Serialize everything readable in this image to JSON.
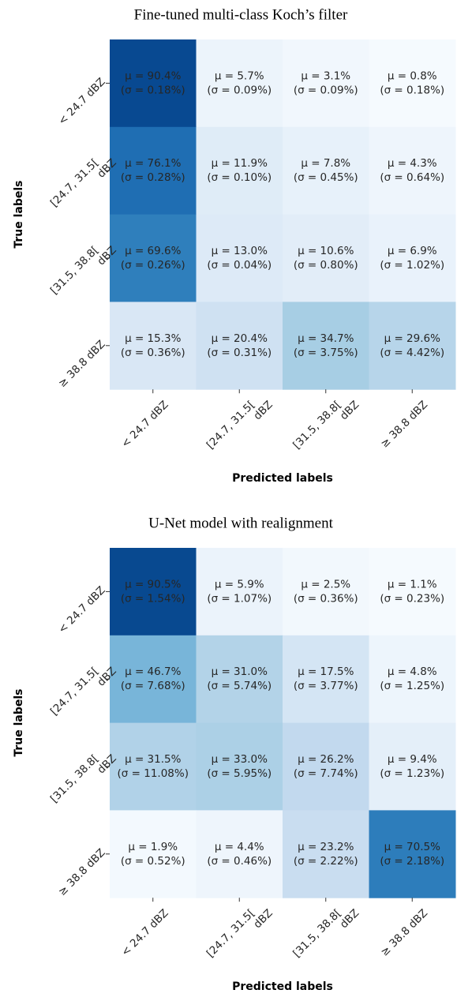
{
  "chart_data": [
    {
      "type": "heatmap",
      "title": "Fine-tuned multi-class Koch’s filter",
      "xlabel": "Predicted labels",
      "ylabel": "True labels",
      "x_categories": [
        [
          "< 24.7 dBZ"
        ],
        [
          "[24.7, 31.5[",
          "dBZ"
        ],
        [
          "[31.5, 38.8[",
          "dBZ"
        ],
        [
          "≥ 38.8 dBZ"
        ]
      ],
      "y_categories": [
        [
          "< 24.7 dBZ"
        ],
        [
          "[24.7, 31.5[",
          "dBZ"
        ],
        [
          "[31.5, 38.8[",
          "dBZ"
        ],
        [
          "≥ 38.8 dBZ"
        ]
      ],
      "values": [
        [
          90.4,
          5.7,
          3.1,
          0.8
        ],
        [
          76.1,
          11.9,
          7.8,
          4.3
        ],
        [
          69.6,
          13.0,
          10.6,
          6.9
        ],
        [
          15.3,
          20.4,
          34.7,
          29.6
        ]
      ],
      "value_labels": [
        [
          "μ = 90.4%",
          "μ = 5.7%",
          "μ = 3.1%",
          "μ = 0.8%"
        ],
        [
          "μ = 76.1%",
          "μ = 11.9%",
          "μ = 7.8%",
          "μ = 4.3%"
        ],
        [
          "μ = 69.6%",
          "μ = 13.0%",
          "μ = 10.6%",
          "μ = 6.9%"
        ],
        [
          "μ = 15.3%",
          "μ = 20.4%",
          "μ = 34.7%",
          "μ = 29.6%"
        ]
      ],
      "errors": [
        [
          0.18,
          0.09,
          0.09,
          0.18
        ],
        [
          0.28,
          0.1,
          0.45,
          0.64
        ],
        [
          0.26,
          0.04,
          0.8,
          1.02
        ],
        [
          0.36,
          0.31,
          3.75,
          4.42
        ]
      ],
      "error_labels": [
        [
          "(σ = 0.18%)",
          "(σ = 0.09%)",
          "(σ = 0.09%)",
          "(σ = 0.18%)"
        ],
        [
          "(σ = 0.28%)",
          "(σ = 0.10%)",
          "(σ = 0.45%)",
          "(σ = 0.64%)"
        ],
        [
          "(σ = 0.26%)",
          "(σ = 0.04%)",
          "(σ = 0.80%)",
          "(σ = 1.02%)"
        ],
        [
          "(σ = 0.36%)",
          "(σ = 0.31%)",
          "(σ = 3.75%)",
          "(σ = 4.42%)"
        ]
      ],
      "colormap": "Blues",
      "zlim": [
        0,
        100
      ]
    },
    {
      "type": "heatmap",
      "title": "U-Net model with realignment",
      "xlabel": "Predicted labels",
      "ylabel": "True labels",
      "x_categories": [
        [
          "< 24.7 dBZ"
        ],
        [
          "[24.7, 31.5[",
          "dBZ"
        ],
        [
          "[31.5, 38.8[",
          "dBZ"
        ],
        [
          "≥ 38.8 dBZ"
        ]
      ],
      "y_categories": [
        [
          "< 24.7 dBZ"
        ],
        [
          "[24.7, 31.5[",
          "dBZ"
        ],
        [
          "[31.5, 38.8[",
          "dBZ"
        ],
        [
          "≥ 38.8 dBZ"
        ]
      ],
      "values": [
        [
          90.5,
          5.9,
          2.5,
          1.1
        ],
        [
          46.7,
          31.0,
          17.5,
          4.8
        ],
        [
          31.5,
          33.0,
          26.2,
          9.4
        ],
        [
          1.9,
          4.4,
          23.2,
          70.5
        ]
      ],
      "value_labels": [
        [
          "μ = 90.5%",
          "μ = 5.9%",
          "μ = 2.5%",
          "μ = 1.1%"
        ],
        [
          "μ = 46.7%",
          "μ = 31.0%",
          "μ = 17.5%",
          "μ = 4.8%"
        ],
        [
          "μ = 31.5%",
          "μ = 33.0%",
          "μ = 26.2%",
          "μ = 9.4%"
        ],
        [
          "μ = 1.9%",
          "μ = 4.4%",
          "μ = 23.2%",
          "μ = 70.5%"
        ]
      ],
      "errors": [
        [
          1.54,
          1.07,
          0.36,
          0.23
        ],
        [
          7.68,
          5.74,
          3.77,
          1.25
        ],
        [
          11.08,
          5.95,
          7.74,
          1.23
        ],
        [
          0.52,
          0.46,
          2.22,
          2.18
        ]
      ],
      "error_labels": [
        [
          "(σ = 1.54%)",
          "(σ = 1.07%)",
          "(σ = 0.36%)",
          "(σ = 0.23%)"
        ],
        [
          "(σ = 7.68%)",
          "(σ = 5.74%)",
          "(σ = 3.77%)",
          "(σ = 1.25%)"
        ],
        [
          "(σ = 11.08%)",
          "(σ = 5.95%)",
          "(σ = 7.74%)",
          "(σ = 1.23%)"
        ],
        [
          "(σ = 0.52%)",
          "(σ = 0.46%)",
          "(σ = 2.22%)",
          "(σ = 2.18%)"
        ]
      ],
      "colormap": "Blues",
      "zlim": [
        0,
        100
      ]
    }
  ]
}
